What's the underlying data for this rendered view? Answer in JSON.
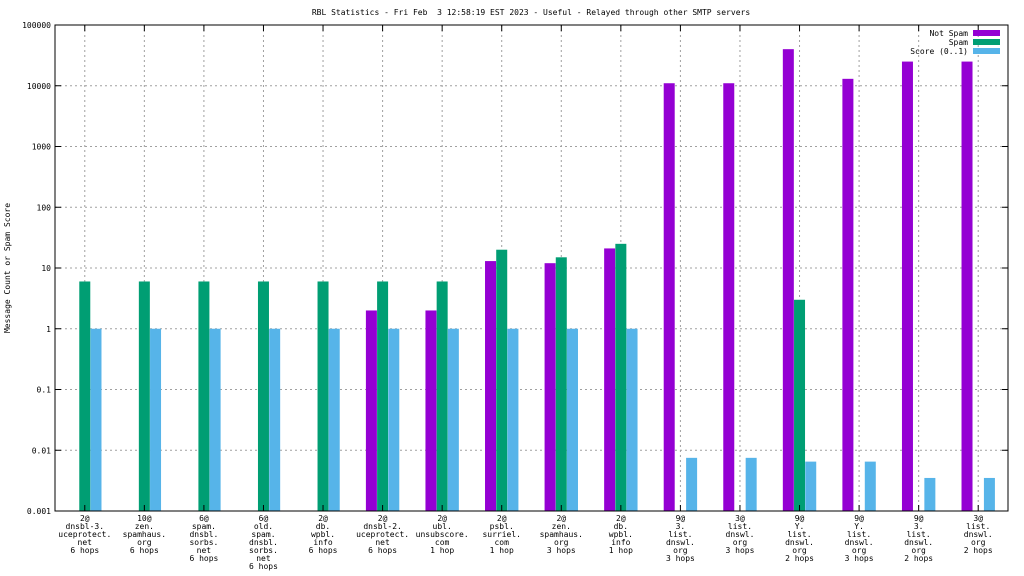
{
  "chart_data": {
    "type": "bar",
    "title": "RBL Statistics - Fri Feb  3 12:58:19 EST 2023 - Useful - Relayed through other SMTP servers",
    "xlabel": "",
    "ylabel": "Message Count or Spam Score",
    "yscale": "log",
    "ylim": [
      0.001,
      100000
    ],
    "yticks": [
      "0.001",
      "0.01",
      "0.1",
      "1",
      "10",
      "100",
      "1000",
      "10000",
      "100000"
    ],
    "grid": true,
    "legend_position": "top-right",
    "categories": [
      [
        "2@",
        "dnsbl-3.",
        "uceprotect.",
        "net",
        "6 hops"
      ],
      [
        "10@",
        "zen.",
        "spamhaus.",
        "org",
        "6 hops"
      ],
      [
        "6@",
        "spam.",
        "dnsbl.",
        "sorbs.",
        "net",
        "6 hops"
      ],
      [
        "6@",
        "old.",
        "spam.",
        "dnsbl.",
        "sorbs.",
        "net",
        "6 hops"
      ],
      [
        "2@",
        "db.",
        "wpbl.",
        "info",
        "6 hops"
      ],
      [
        "2@",
        "dnsbl-2.",
        "uceprotect.",
        "net",
        "6 hops"
      ],
      [
        "2@",
        "ubl.",
        "unsubscore.",
        "com",
        "1 hop"
      ],
      [
        "2@",
        "psbl.",
        "surriel.",
        "com",
        "1 hop"
      ],
      [
        "2@",
        "zen.",
        "spamhaus.",
        "org",
        "3 hops"
      ],
      [
        "2@",
        "db.",
        "wpbl.",
        "info",
        "1 hop"
      ],
      [
        "9@",
        "3.",
        "list.",
        "dnswl.",
        "org",
        "3 hops"
      ],
      [
        "3@",
        "list.",
        "dnswl.",
        "org",
        "3 hops"
      ],
      [
        "9@",
        "Y.",
        "list.",
        "dnswl.",
        "org",
        "2 hops"
      ],
      [
        "9@",
        "Y.",
        "list.",
        "dnswl.",
        "org",
        "3 hops"
      ],
      [
        "9@",
        "3.",
        "list.",
        "dnswl.",
        "org",
        "2 hops"
      ],
      [
        "3@",
        "list.",
        "dnswl.",
        "org",
        "2 hops"
      ]
    ],
    "series": [
      {
        "name": "Not Spam",
        "color": "#9400d3",
        "values": [
          0,
          0,
          0,
          0,
          0,
          2,
          2,
          13,
          12,
          21,
          11000,
          11000,
          40000,
          13000,
          25000,
          25000
        ]
      },
      {
        "name": "Spam",
        "color": "#009e73",
        "values": [
          6,
          6,
          6,
          6,
          6,
          6,
          6,
          20,
          15,
          25,
          0,
          0,
          3,
          0,
          0,
          0
        ]
      },
      {
        "name": "Score (0..1)",
        "color": "#56b4e9",
        "values": [
          1,
          1,
          1,
          1,
          1,
          1,
          1,
          1,
          1,
          1,
          0.0075,
          0.0075,
          0.0065,
          0.0065,
          0.0035,
          0.0035
        ]
      }
    ]
  }
}
